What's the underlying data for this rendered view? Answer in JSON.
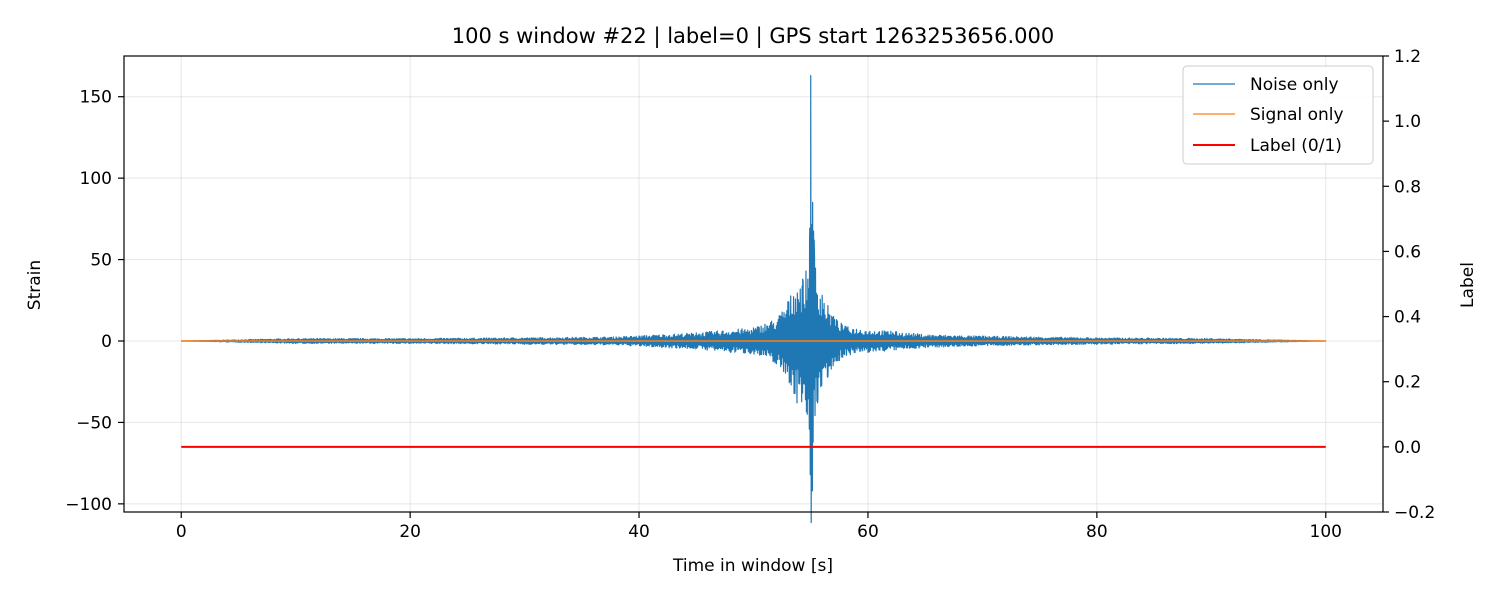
{
  "chart_data": {
    "type": "line",
    "title": "100 s window #22 | label=0 | GPS start 1263253656.000",
    "xlabel": "Time in window [s]",
    "ylabel": "Strain",
    "y2label": "Label",
    "xlim": [
      -5,
      105
    ],
    "ylim": [
      -105,
      175
    ],
    "y2lim": [
      -0.2,
      1.2
    ],
    "x_ticks": [
      0,
      20,
      40,
      60,
      80,
      100
    ],
    "x_tick_labels": [
      "0",
      "20",
      "40",
      "60",
      "80",
      "100"
    ],
    "y_ticks": [
      -100,
      -50,
      0,
      50,
      100,
      150
    ],
    "y_tick_labels": [
      "−100",
      "−50",
      "0",
      "50",
      "100",
      "150"
    ],
    "y2_ticks": [
      -0.2,
      0.0,
      0.2,
      0.4,
      0.6,
      0.8,
      1.0,
      1.2
    ],
    "y2_tick_labels": [
      "−0.2",
      "0.0",
      "0.2",
      "0.4",
      "0.6",
      "0.8",
      "1.0",
      "1.2"
    ],
    "grid": true,
    "legend_position": "top-right",
    "series": [
      {
        "name": "Noise only",
        "color": "#1f77b4",
        "axis": "left",
        "x": [
          0,
          10,
          20,
          30,
          38,
          42,
          45,
          48,
          50,
          52,
          53,
          53.8,
          54.3,
          54.7,
          54.9,
          55.0,
          55.15,
          55.3,
          55.6,
          56.0,
          56.5,
          57.0,
          57.5,
          58,
          60,
          62,
          65,
          70,
          80,
          90,
          100
        ],
        "y": [
          0,
          -1.5,
          1.5,
          -2,
          2.5,
          -4,
          5,
          -7,
          8,
          -14,
          24,
          -38,
          38,
          -45,
          63,
          163,
          -92,
          62,
          -38,
          28,
          -22,
          15,
          -12,
          9,
          -7,
          6,
          -4,
          3,
          -2,
          1.5,
          0
        ]
      },
      {
        "name": "Signal only",
        "color": "#ff7f0e",
        "axis": "left",
        "x": [
          0,
          100
        ],
        "y": [
          0,
          0
        ]
      },
      {
        "name": "Label (0/1)",
        "color": "#ff0000",
        "axis": "right",
        "x": [
          0,
          100
        ],
        "y": [
          0,
          0
        ]
      }
    ]
  }
}
